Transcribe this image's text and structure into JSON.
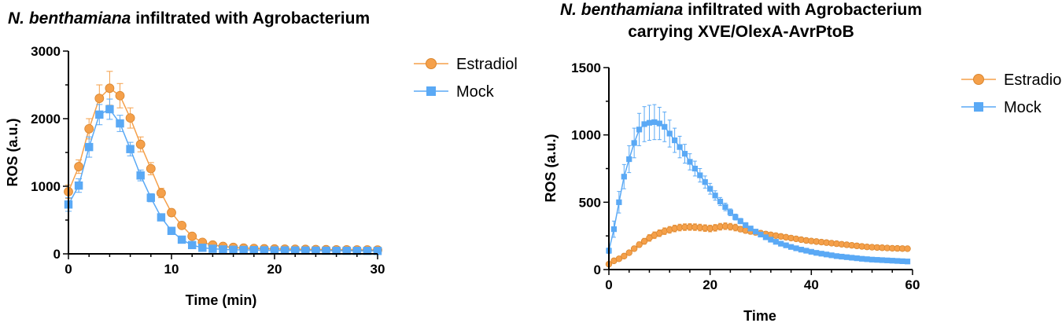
{
  "chart_data": [
    {
      "type": "line",
      "title_italic": "N. benthamiana",
      "title": " infiltrated with Agrobacterium",
      "subtitle": "",
      "xlabel": "Time (min)",
      "ylabel": "ROS (a.u.)",
      "xlim": [
        0,
        30
      ],
      "ylim": [
        0,
        3000
      ],
      "xticks": [
        0,
        10,
        20,
        30
      ],
      "yticks": [
        0,
        1000,
        2000,
        3000
      ],
      "grid": false,
      "legend_position": "top-right",
      "colors": {
        "Estradiol": "#F5A04A",
        "Mock": "#5AA9F5"
      },
      "series": [
        {
          "name": "Estradiol",
          "marker": "circle",
          "x": [
            0,
            1,
            2,
            3,
            4,
            5,
            6,
            7,
            8,
            9,
            10,
            11,
            12,
            13,
            14,
            15,
            16,
            17,
            18,
            19,
            20,
            21,
            22,
            23,
            24,
            25,
            26,
            27,
            28,
            29,
            30
          ],
          "values": [
            920,
            1290,
            1850,
            2300,
            2450,
            2340,
            2010,
            1620,
            1260,
            900,
            610,
            420,
            260,
            170,
            130,
            110,
            95,
            85,
            80,
            75,
            72,
            70,
            68,
            66,
            64,
            62,
            60,
            60,
            58,
            58,
            57
          ],
          "error": [
            100,
            100,
            150,
            200,
            250,
            180,
            150,
            110,
            90,
            70,
            50,
            40,
            30,
            25,
            20,
            20,
            15,
            15,
            15,
            15,
            15,
            15,
            15,
            15,
            15,
            15,
            15,
            15,
            15,
            15,
            15
          ]
        },
        {
          "name": "Mock",
          "marker": "square",
          "x": [
            0,
            1,
            2,
            3,
            4,
            5,
            6,
            7,
            8,
            9,
            10,
            11,
            12,
            13,
            14,
            15,
            16,
            17,
            18,
            19,
            20,
            21,
            22,
            23,
            24,
            25,
            26,
            27,
            28,
            29,
            30
          ],
          "values": [
            730,
            1010,
            1580,
            2060,
            2140,
            1930,
            1550,
            1160,
            830,
            540,
            340,
            210,
            130,
            90,
            75,
            65,
            60,
            58,
            55,
            52,
            50,
            50,
            49,
            48,
            47,
            46,
            45,
            45,
            44,
            44,
            43
          ],
          "error": [
            100,
            100,
            150,
            150,
            150,
            120,
            100,
            80,
            60,
            50,
            40,
            30,
            25,
            20,
            15,
            15,
            15,
            15,
            15,
            15,
            15,
            15,
            15,
            15,
            15,
            15,
            15,
            15,
            15,
            15,
            15
          ]
        }
      ]
    },
    {
      "type": "line",
      "title_italic": "N. benthamiana",
      "title": " infiltrated with Agrobacterium",
      "subtitle": "carrying XVE/OlexA-AvrPtoB",
      "xlabel": "Time",
      "ylabel": "ROS (a.u.)",
      "xlim": [
        0,
        60
      ],
      "ylim": [
        0,
        1500
      ],
      "xticks": [
        0,
        20,
        40,
        60
      ],
      "yticks": [
        0,
        500,
        1000,
        1500
      ],
      "grid": false,
      "legend_position": "top-right",
      "colors": {
        "Estradiol": "#F5A04A",
        "Mock": "#5AA9F5"
      },
      "series": [
        {
          "name": "Estradiol",
          "marker": "circle",
          "x": [
            0,
            1,
            2,
            3,
            4,
            5,
            6,
            7,
            8,
            9,
            10,
            11,
            12,
            13,
            14,
            15,
            16,
            17,
            18,
            19,
            20,
            21,
            22,
            23,
            24,
            25,
            26,
            27,
            28,
            29,
            30,
            31,
            32,
            33,
            34,
            35,
            36,
            37,
            38,
            39,
            40,
            41,
            42,
            43,
            44,
            45,
            46,
            47,
            48,
            49,
            50,
            51,
            52,
            53,
            54,
            55,
            56,
            57,
            58,
            59
          ],
          "values": [
            40,
            65,
            80,
            100,
            125,
            155,
            185,
            210,
            235,
            255,
            270,
            285,
            295,
            305,
            312,
            315,
            316,
            315,
            312,
            308,
            305,
            310,
            318,
            322,
            318,
            312,
            300,
            290,
            283,
            276,
            270,
            264,
            258,
            252,
            246,
            240,
            234,
            228,
            222,
            216,
            212,
            208,
            204,
            200,
            196,
            192,
            188,
            184,
            180,
            176,
            172,
            168,
            166,
            164,
            162,
            160,
            158,
            157,
            156,
            155
          ],
          "error": [
            10,
            10,
            10,
            12,
            15,
            18,
            20,
            22,
            25,
            25,
            25,
            25,
            25,
            25,
            25,
            25,
            25,
            25,
            25,
            25,
            25,
            25,
            25,
            25,
            25,
            25,
            20,
            20,
            20,
            20,
            20,
            18,
            18,
            18,
            18,
            18,
            18,
            18,
            18,
            18,
            18,
            18,
            18,
            18,
            18,
            18,
            18,
            18,
            18,
            18,
            18,
            18,
            18,
            18,
            18,
            18,
            18,
            18,
            18,
            18
          ]
        },
        {
          "name": "Mock",
          "marker": "square",
          "x": [
            0,
            1,
            2,
            3,
            4,
            5,
            6,
            7,
            8,
            9,
            10,
            11,
            12,
            13,
            14,
            15,
            16,
            17,
            18,
            19,
            20,
            21,
            22,
            23,
            24,
            25,
            26,
            27,
            28,
            29,
            30,
            31,
            32,
            33,
            34,
            35,
            36,
            37,
            38,
            39,
            40,
            41,
            42,
            43,
            44,
            45,
            46,
            47,
            48,
            49,
            50,
            51,
            52,
            53,
            54,
            55,
            56,
            57,
            58,
            59
          ],
          "values": [
            140,
            300,
            500,
            690,
            820,
            940,
            1040,
            1080,
            1090,
            1095,
            1085,
            1060,
            1010,
            960,
            910,
            860,
            800,
            750,
            700,
            650,
            600,
            550,
            505,
            465,
            425,
            390,
            360,
            330,
            305,
            282,
            260,
            240,
            222,
            206,
            192,
            180,
            168,
            158,
            148,
            140,
            132,
            124,
            118,
            112,
            106,
            100,
            96,
            92,
            88,
            84,
            80,
            77,
            74,
            72,
            70,
            68,
            66,
            64,
            62,
            60
          ],
          "error": [
            20,
            60,
            80,
            90,
            100,
            110,
            120,
            130,
            130,
            130,
            120,
            110,
            100,
            90,
            80,
            70,
            60,
            55,
            50,
            45,
            40,
            35,
            30,
            28,
            25,
            22,
            20,
            18,
            16,
            15,
            14,
            12,
            12,
            12,
            10,
            10,
            10,
            10,
            10,
            10,
            10,
            10,
            10,
            10,
            10,
            10,
            10,
            10,
            10,
            10,
            10,
            10,
            10,
            10,
            10,
            10,
            10,
            10,
            10,
            10
          ]
        }
      ]
    }
  ]
}
